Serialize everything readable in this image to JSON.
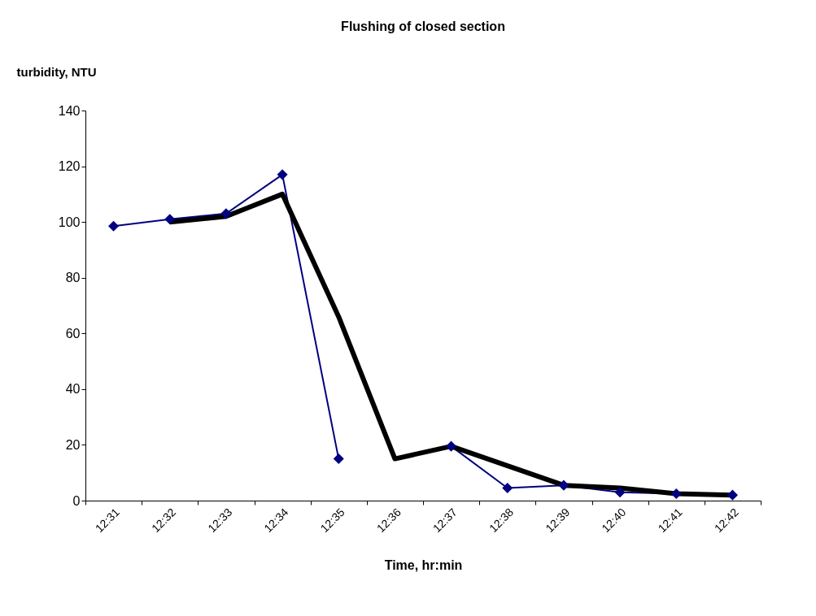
{
  "chart_data": {
    "type": "line",
    "title": "Flushing of closed section",
    "xlabel": "Time, hr:min",
    "ylabel": "turbidity, NTU",
    "categories": [
      "12:31",
      "12:32",
      "12:33",
      "12:34",
      "12:35",
      "12:36",
      "12:37",
      "12:38",
      "12:39",
      "12:40",
      "12:41",
      "12:42"
    ],
    "series": [
      {
        "color": "#000080",
        "marker": "diamond",
        "values": [
          98.5,
          101,
          103,
          117,
          15,
          null,
          19.5,
          4.5,
          5.5,
          3,
          2.5,
          2
        ]
      },
      {
        "color": "#000000",
        "marker": "none",
        "values": [
          null,
          100,
          102,
          110,
          66,
          15,
          19.5,
          12.5,
          5.5,
          4.5,
          2.5,
          2
        ]
      }
    ],
    "ylim": [
      0,
      140
    ],
    "yticks": [
      0,
      20,
      40,
      60,
      80,
      100,
      120,
      140
    ],
    "grid": false
  }
}
